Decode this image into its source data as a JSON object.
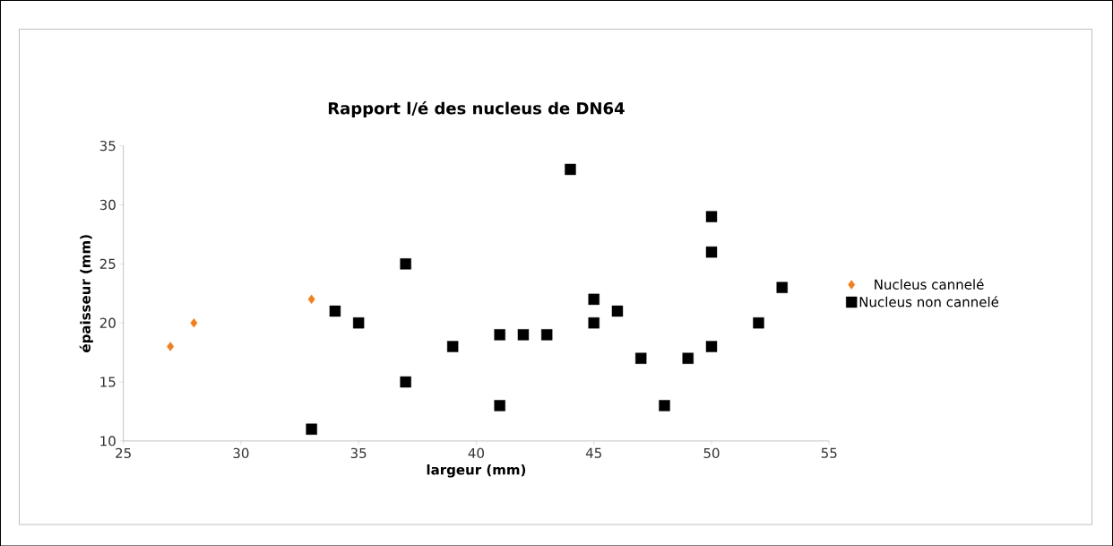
{
  "chart_data": {
    "type": "scatter",
    "title": "Rapport l/é des nucleus de DN64",
    "xlabel": "largeur (mm)",
    "ylabel": "épaisseur (mm)",
    "xlim": [
      25,
      55
    ],
    "xticks": [
      25,
      30,
      35,
      40,
      45,
      50,
      55
    ],
    "ylim": [
      10,
      35
    ],
    "yticks": [
      10,
      15,
      20,
      25,
      30,
      35
    ],
    "grid": false,
    "legend": "right",
    "series": [
      {
        "name": "Nucleus cannelé",
        "color": "#f07f1f",
        "marker": "diamond",
        "x": [
          27,
          28,
          33
        ],
        "values": [
          18,
          20,
          22
        ]
      },
      {
        "name": "Nucleus non cannelé",
        "color": "#000000",
        "marker": "square",
        "x": [
          33,
          34,
          35,
          37,
          37,
          39,
          41,
          41,
          42,
          43,
          44,
          45,
          45,
          46,
          47,
          48,
          49,
          50,
          50,
          50,
          52,
          53
        ],
        "values": [
          11,
          21,
          20,
          25,
          15,
          18,
          19,
          13,
          19,
          19,
          33,
          22,
          20,
          21,
          17,
          13,
          17,
          29,
          26,
          18,
          20,
          23
        ]
      }
    ]
  }
}
